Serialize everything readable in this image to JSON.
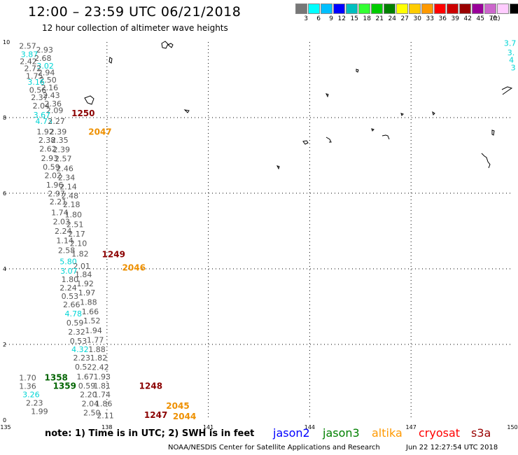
{
  "header": {
    "title": "12:00 – 23:59 UTC 06/21/2018",
    "subtitle": "12 hour collection of altimeter wave heights"
  },
  "legend": {
    "colors": [
      "#777777",
      "#00ffff",
      "#00bfff",
      "#0000ff",
      "#00bfbf",
      "#33ff33",
      "#00cc00",
      "#008000",
      "#ffff00",
      "#ffcc00",
      "#ff9900",
      "#ff0000",
      "#cc0000",
      "#990000",
      "#990099",
      "#cc66cc",
      "#ffccff",
      "#000000"
    ],
    "labels": [
      "3",
      "6",
      "9",
      "12",
      "15",
      "18",
      "21",
      "24",
      "27",
      "30",
      "33",
      "36",
      "39",
      "42",
      "45",
      "70"
    ],
    "unit": "(ft)"
  },
  "map": {
    "x_ticks": [
      "135",
      "138",
      "141",
      "144",
      "147",
      "150"
    ],
    "y_ticks": [
      "0",
      "2",
      "4",
      "6",
      "8",
      "10"
    ],
    "readings": [
      {
        "t": "2.57",
        "x": 0.4,
        "y": 9.82,
        "c": "#555555"
      },
      {
        "t": "2.93",
        "x": 0.9,
        "y": 9.72,
        "c": "#555555"
      },
      {
        "t": "3.87",
        "x": 0.45,
        "y": 9.6,
        "c": "#00d5d5"
      },
      {
        "t": "2.68",
        "x": 0.85,
        "y": 9.5,
        "c": "#555555"
      },
      {
        "t": "2.42",
        "x": 0.42,
        "y": 9.42,
        "c": "#555555"
      },
      {
        "t": "3.02",
        "x": 0.92,
        "y": 9.3,
        "c": "#00d5d5"
      },
      {
        "t": "2.72",
        "x": 0.55,
        "y": 9.23,
        "c": "#555555"
      },
      {
        "t": "2.94",
        "x": 0.95,
        "y": 9.12,
        "c": "#555555"
      },
      {
        "t": "1.75",
        "x": 0.6,
        "y": 9.03,
        "c": "#555555"
      },
      {
        "t": "2.50",
        "x": 1.0,
        "y": 8.93,
        "c": "#555555"
      },
      {
        "t": "3.16",
        "x": 0.65,
        "y": 8.87,
        "c": "#00d5d5"
      },
      {
        "t": "2.16",
        "x": 1.05,
        "y": 8.72,
        "c": "#555555"
      },
      {
        "t": "0.56",
        "x": 0.7,
        "y": 8.66,
        "c": "#555555"
      },
      {
        "t": "2.43",
        "x": 1.1,
        "y": 8.52,
        "c": "#555555"
      },
      {
        "t": "2.37",
        "x": 0.75,
        "y": 8.46,
        "c": "#555555"
      },
      {
        "t": "2.36",
        "x": 1.15,
        "y": 8.3,
        "c": "#555555"
      },
      {
        "t": "2.04",
        "x": 0.8,
        "y": 8.24,
        "c": "#555555"
      },
      {
        "t": "2.09",
        "x": 1.2,
        "y": 8.12,
        "c": "#555555"
      },
      {
        "t": "3.67",
        "x": 0.82,
        "y": 8.0,
        "c": "#00d5d5"
      },
      {
        "t": "4.73",
        "x": 0.88,
        "y": 7.83,
        "c": "#00d5d5"
      },
      {
        "t": "2.27",
        "x": 1.25,
        "y": 7.83,
        "c": "#555555"
      },
      {
        "t": "1.92",
        "x": 0.92,
        "y": 7.56,
        "c": "#555555"
      },
      {
        "t": "2.39",
        "x": 1.3,
        "y": 7.56,
        "c": "#555555"
      },
      {
        "t": "2.38",
        "x": 0.97,
        "y": 7.33,
        "c": "#555555"
      },
      {
        "t": "2.35",
        "x": 1.35,
        "y": 7.33,
        "c": "#555555"
      },
      {
        "t": "2.62",
        "x": 1.0,
        "y": 7.1,
        "c": "#555555"
      },
      {
        "t": "2.39",
        "x": 1.4,
        "y": 7.08,
        "c": "#555555"
      },
      {
        "t": "2.93",
        "x": 1.05,
        "y": 6.85,
        "c": "#555555"
      },
      {
        "t": "2.57",
        "x": 1.45,
        "y": 6.84,
        "c": "#555555"
      },
      {
        "t": "0.59",
        "x": 1.1,
        "y": 6.62,
        "c": "#555555"
      },
      {
        "t": "2.46",
        "x": 1.5,
        "y": 6.58,
        "c": "#555555"
      },
      {
        "t": "2.02",
        "x": 1.15,
        "y": 6.4,
        "c": "#555555"
      },
      {
        "t": "2.34",
        "x": 1.55,
        "y": 6.34,
        "c": "#555555"
      },
      {
        "t": "1.96",
        "x": 1.2,
        "y": 6.15,
        "c": "#555555"
      },
      {
        "t": "2.14",
        "x": 1.6,
        "y": 6.1,
        "c": "#555555"
      },
      {
        "t": "2.97",
        "x": 1.25,
        "y": 5.92,
        "c": "#555555"
      },
      {
        "t": "2.48",
        "x": 1.65,
        "y": 5.86,
        "c": "#555555"
      },
      {
        "t": "2.21",
        "x": 1.3,
        "y": 5.7,
        "c": "#555555"
      },
      {
        "t": "2.18",
        "x": 1.7,
        "y": 5.63,
        "c": "#555555"
      },
      {
        "t": "1.74",
        "x": 1.35,
        "y": 5.42,
        "c": "#555555"
      },
      {
        "t": "1.80",
        "x": 1.75,
        "y": 5.36,
        "c": "#555555"
      },
      {
        "t": "2.03",
        "x": 1.4,
        "y": 5.18,
        "c": "#555555"
      },
      {
        "t": "2.51",
        "x": 1.8,
        "y": 5.1,
        "c": "#555555"
      },
      {
        "t": "2.24",
        "x": 1.45,
        "y": 4.93,
        "c": "#555555"
      },
      {
        "t": "2.17",
        "x": 1.85,
        "y": 4.85,
        "c": "#555555"
      },
      {
        "t": "1.14",
        "x": 1.5,
        "y": 4.68,
        "c": "#555555"
      },
      {
        "t": "2.10",
        "x": 1.9,
        "y": 4.6,
        "c": "#555555"
      },
      {
        "t": "2.58",
        "x": 1.55,
        "y": 4.42,
        "c": "#555555"
      },
      {
        "t": "1.82",
        "x": 1.95,
        "y": 4.32,
        "c": "#555555"
      },
      {
        "t": "5.80",
        "x": 1.6,
        "y": 4.12,
        "c": "#00d5d5"
      },
      {
        "t": "2.01",
        "x": 2.0,
        "y": 4.0,
        "c": "#555555"
      },
      {
        "t": "3.07",
        "x": 1.62,
        "y": 3.87,
        "c": "#00d5d5"
      },
      {
        "t": "1.84",
        "x": 2.05,
        "y": 3.78,
        "c": "#555555"
      },
      {
        "t": "1.80",
        "x": 1.65,
        "y": 3.65,
        "c": "#555555"
      },
      {
        "t": "1.92",
        "x": 2.1,
        "y": 3.54,
        "c": "#555555"
      },
      {
        "t": "2.24",
        "x": 1.6,
        "y": 3.43,
        "c": "#555555"
      },
      {
        "t": "1.97",
        "x": 2.15,
        "y": 3.3,
        "c": "#555555"
      },
      {
        "t": "0.53",
        "x": 1.65,
        "y": 3.2,
        "c": "#555555"
      },
      {
        "t": "1.88",
        "x": 2.2,
        "y": 3.05,
        "c": "#555555"
      },
      {
        "t": "2.66",
        "x": 1.7,
        "y": 2.98,
        "c": "#555555"
      },
      {
        "t": "1.66",
        "x": 2.25,
        "y": 2.8,
        "c": "#555555"
      },
      {
        "t": "4.78",
        "x": 1.75,
        "y": 2.74,
        "c": "#00d5d5"
      },
      {
        "t": "1.52",
        "x": 2.3,
        "y": 2.56,
        "c": "#555555"
      },
      {
        "t": "0.59",
        "x": 1.8,
        "y": 2.5,
        "c": "#555555"
      },
      {
        "t": "1.94",
        "x": 2.35,
        "y": 2.3,
        "c": "#555555"
      },
      {
        "t": "2.32",
        "x": 1.85,
        "y": 2.26,
        "c": "#555555"
      },
      {
        "t": "1.77",
        "x": 2.4,
        "y": 2.05,
        "c": "#555555"
      },
      {
        "t": "0.53",
        "x": 1.9,
        "y": 2.02,
        "c": "#555555"
      },
      {
        "t": "4.32",
        "x": 1.95,
        "y": 1.8,
        "c": "#00d5d5"
      },
      {
        "t": "1.88",
        "x": 2.45,
        "y": 1.8,
        "c": "#555555"
      },
      {
        "t": "2.23",
        "x": 2.0,
        "y": 1.57,
        "c": "#555555"
      },
      {
        "t": "1.82",
        "x": 2.5,
        "y": 1.57,
        "c": "#555555"
      },
      {
        "t": "0.52",
        "x": 2.05,
        "y": 1.33,
        "c": "#555555"
      },
      {
        "t": "2.42",
        "x": 2.55,
        "y": 1.32,
        "c": "#555555"
      },
      {
        "t": "1.67",
        "x": 2.1,
        "y": 1.07,
        "c": "#555555"
      },
      {
        "t": "1.93",
        "x": 2.6,
        "y": 1.07,
        "c": "#555555"
      },
      {
        "t": "0.59",
        "x": 2.15,
        "y": 0.83,
        "c": "#555555"
      },
      {
        "t": "1.81",
        "x": 2.6,
        "y": 0.83,
        "c": "#555555"
      },
      {
        "t": "2.20",
        "x": 2.2,
        "y": 0.6,
        "c": "#555555"
      },
      {
        "t": "1.74",
        "x": 2.6,
        "y": 0.6,
        "c": "#555555"
      },
      {
        "t": "2.04",
        "x": 2.25,
        "y": 0.36,
        "c": "#555555"
      },
      {
        "t": "1.86",
        "x": 2.65,
        "y": 0.36,
        "c": "#555555"
      },
      {
        "t": "2.50",
        "x": 2.3,
        "y": 0.12,
        "c": "#555555"
      },
      {
        "t": "2.11",
        "x": 2.7,
        "y": 0.05,
        "c": "#555555"
      },
      {
        "t": "1.70",
        "x": 0.4,
        "y": 1.05,
        "c": "#555555"
      },
      {
        "t": "1.36",
        "x": 0.4,
        "y": 0.82,
        "c": "#555555"
      },
      {
        "t": "3.26",
        "x": 0.5,
        "y": 0.6,
        "c": "#00d5d5"
      },
      {
        "t": "2.23",
        "x": 0.6,
        "y": 0.38,
        "c": "#555555"
      },
      {
        "t": "1.99",
        "x": 0.75,
        "y": 0.16,
        "c": "#555555"
      },
      {
        "t": "3.7",
        "x": 14.75,
        "y": 9.9,
        "c": "#00d5d5"
      },
      {
        "t": "3.",
        "x": 14.85,
        "y": 9.65,
        "c": "#00d5d5"
      },
      {
        "t": "4",
        "x": 14.9,
        "y": 9.45,
        "c": "#00d5d5"
      },
      {
        "t": "3",
        "x": 14.95,
        "y": 9.25,
        "c": "#00d5d5"
      }
    ],
    "times": [
      {
        "t": "1250",
        "x": 1.95,
        "y": 8.04,
        "c": "#8b0000"
      },
      {
        "t": "2047",
        "x": 2.45,
        "y": 7.55,
        "c": "#ee9000"
      },
      {
        "t": "1249",
        "x": 2.85,
        "y": 4.31,
        "c": "#8b0000"
      },
      {
        "t": "2046",
        "x": 3.45,
        "y": 3.95,
        "c": "#ee9000"
      },
      {
        "t": "1358",
        "x": 1.15,
        "y": 1.05,
        "c": "#006400"
      },
      {
        "t": "1359",
        "x": 1.4,
        "y": 0.82,
        "c": "#006400"
      },
      {
        "t": "1248",
        "x": 3.95,
        "y": 0.82,
        "c": "#8b0000"
      },
      {
        "t": "2045",
        "x": 4.75,
        "y": 0.3,
        "c": "#ee9000"
      },
      {
        "t": "1247",
        "x": 4.1,
        "y": 0.06,
        "c": "#8b0000"
      },
      {
        "t": "2044",
        "x": 4.95,
        "y": 0.02,
        "c": "#ee9000"
      }
    ]
  },
  "footer": {
    "note": "note: 1) Time is in UTC; 2) SWH is in feet",
    "satellites": [
      {
        "label": "jason2",
        "color": "#0000ff"
      },
      {
        "label": "jason3",
        "color": "#008000"
      },
      {
        "label": "altika",
        "color": "#ff9900"
      },
      {
        "label": "cryosat",
        "color": "#ff0000"
      },
      {
        "label": "s3a",
        "color": "#990000"
      }
    ],
    "credit": "NOAA/NESDIS Center for Satellite Applications and Research",
    "timestamp": "Jun 22 12:27:54 UTC 2018"
  }
}
